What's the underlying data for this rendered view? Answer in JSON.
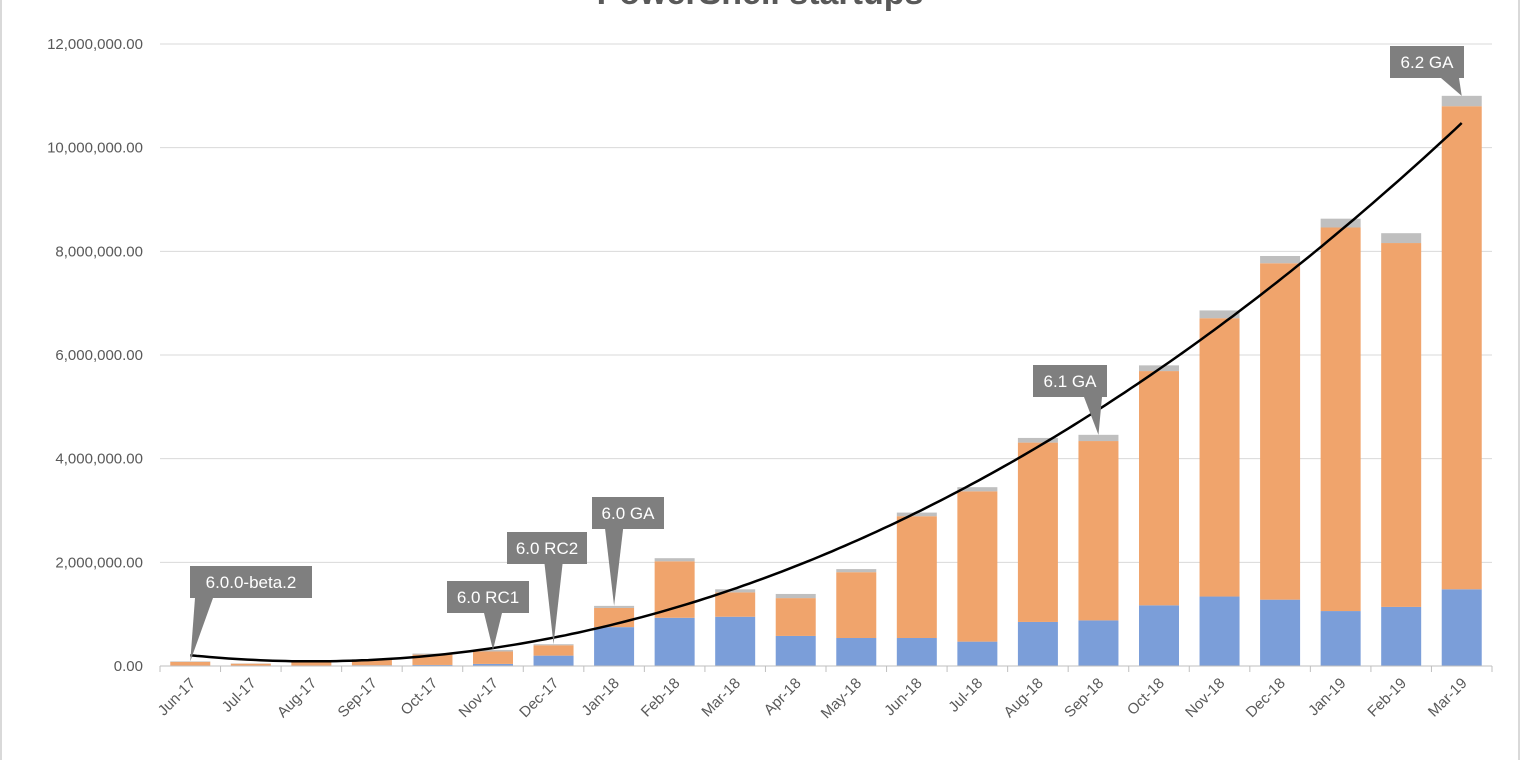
{
  "chart_data": {
    "type": "bar",
    "stacked": true,
    "title": "PowerShell startups",
    "ylim": [
      0,
      12000000
    ],
    "ytick_values": [
      0,
      2000000,
      4000000,
      6000000,
      8000000,
      10000000,
      12000000
    ],
    "ytick_labels": [
      "0.00",
      "2,000,000.00",
      "4,000,000.00",
      "6,000,000.00",
      "8,000,000.00",
      "10,000,000.00",
      "12,000,000.00"
    ],
    "grid": true,
    "categories": [
      "Jun-17",
      "Jul-17",
      "Aug-17",
      "Sep-17",
      "Oct-17",
      "Nov-17",
      "Dec-17",
      "Jan-18",
      "Feb-18",
      "Mar-18",
      "Apr-18",
      "May-18",
      "Jun-18",
      "Jul-18",
      "Aug-18",
      "Sep-18",
      "Oct-18",
      "Nov-18",
      "Dec-18",
      "Jan-19",
      "Feb-19",
      "Mar-19"
    ],
    "series": [
      {
        "color": "#7b9ed9",
        "values": [
          10000,
          5000,
          10000,
          15000,
          20000,
          40000,
          200000,
          750000,
          930000,
          950000,
          580000,
          540000,
          540000,
          470000,
          850000,
          880000,
          1170000,
          1340000,
          1280000,
          1060000,
          1140000,
          1480000
        ]
      },
      {
        "color": "#f0a46c",
        "values": [
          70000,
          40000,
          70000,
          100000,
          200000,
          240000,
          200000,
          370000,
          1090000,
          470000,
          730000,
          1270000,
          2350000,
          2900000,
          3460000,
          3460000,
          4520000,
          5370000,
          6490000,
          7400000,
          7020000,
          9320000
        ]
      },
      {
        "color": "#bfbfbf",
        "values": [
          10000,
          5000,
          10000,
          15000,
          20000,
          30000,
          20000,
          40000,
          60000,
          60000,
          80000,
          60000,
          70000,
          80000,
          90000,
          120000,
          110000,
          150000,
          140000,
          170000,
          190000,
          200000
        ]
      }
    ],
    "trendline": {
      "type": "polynomial",
      "color": "#000000"
    },
    "annotations": [
      {
        "label": "6.0.0-beta.2",
        "category": "Jun-17"
      },
      {
        "label": "6.0 RC1",
        "category": "Nov-17"
      },
      {
        "label": "6.0 RC2",
        "category": "Dec-17"
      },
      {
        "label": "6.0 GA",
        "category": "Jan-18"
      },
      {
        "label": "6.1 GA",
        "category": "Sep-18"
      },
      {
        "label": "6.2 GA",
        "category": "Mar-19"
      }
    ]
  }
}
